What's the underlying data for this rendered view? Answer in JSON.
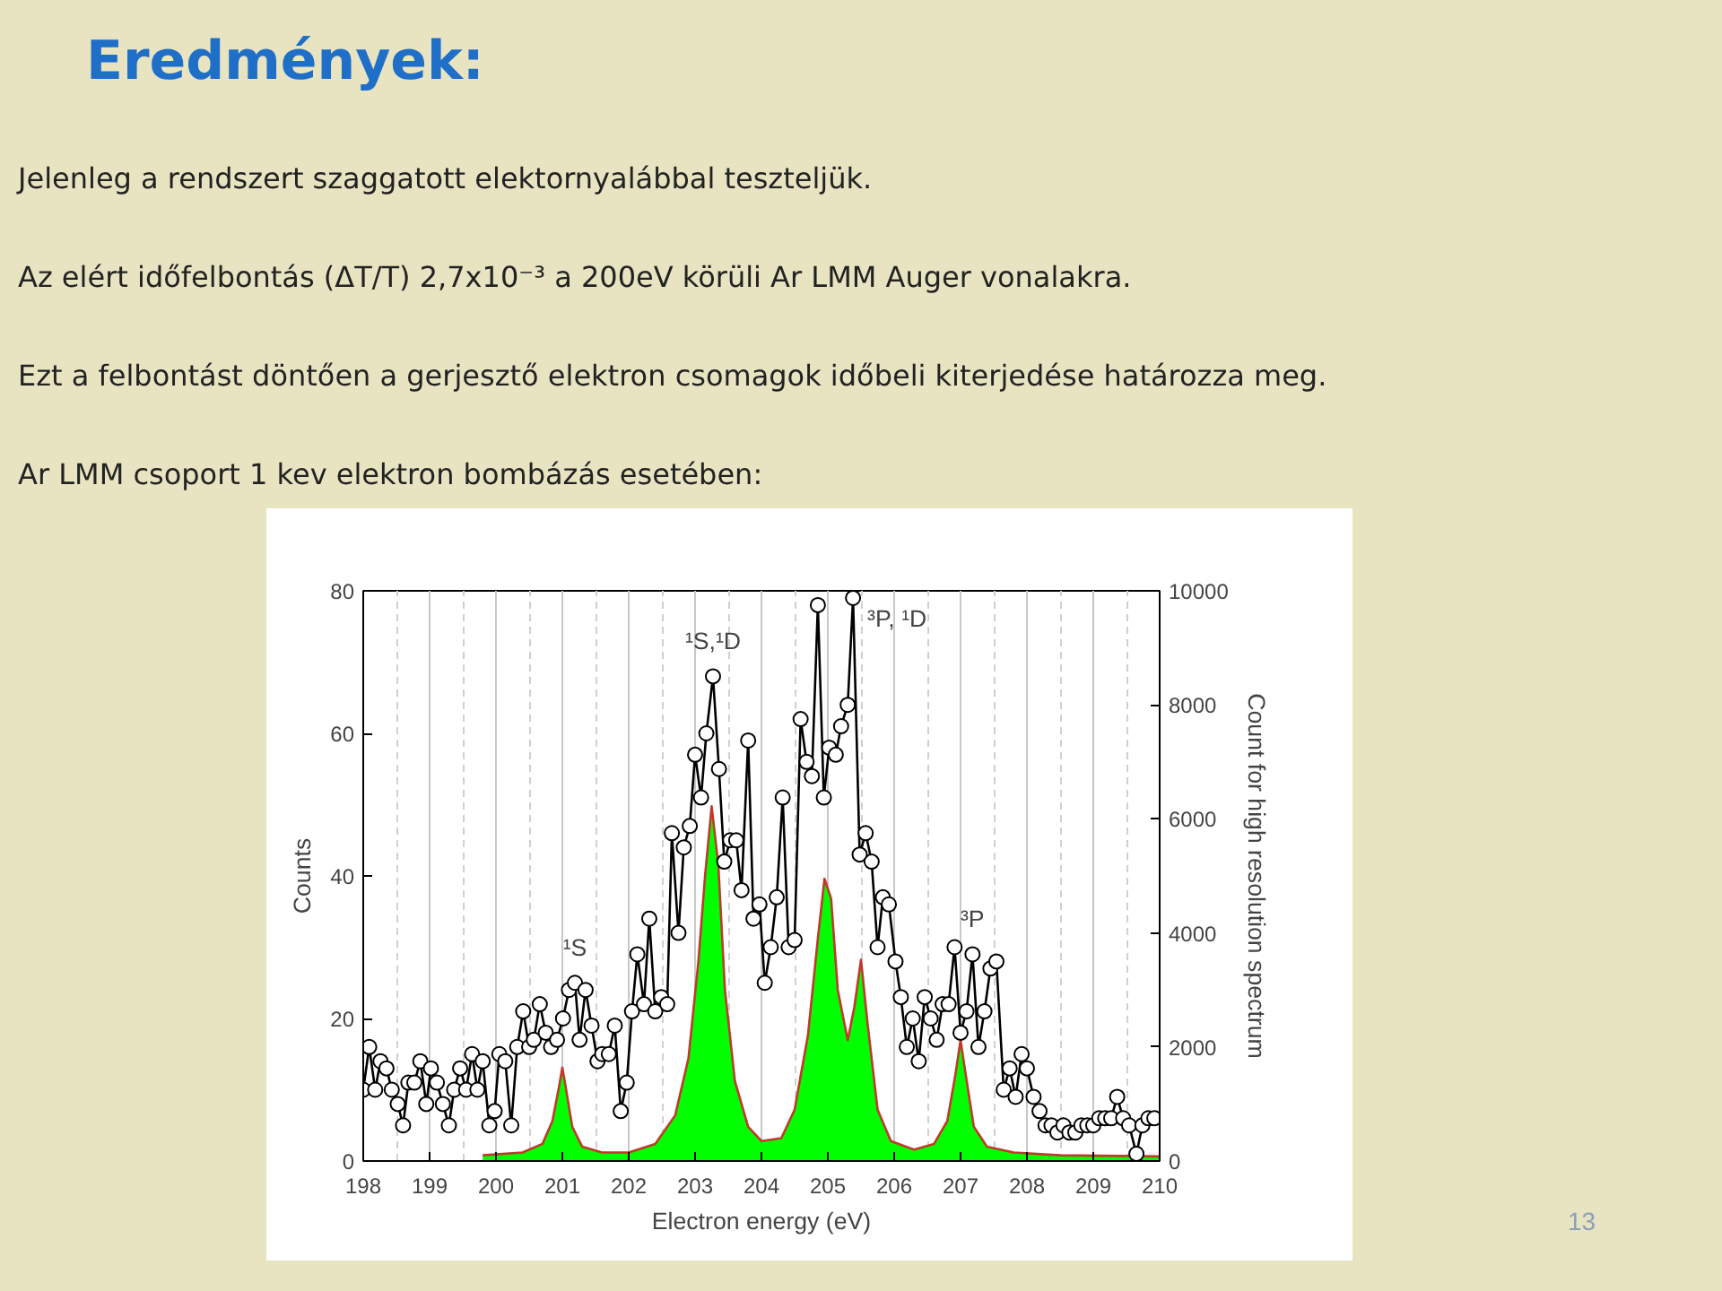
{
  "chart_data": {
    "type": "line",
    "title": "Eredmények:",
    "xlabel": "Electron energy (eV)",
    "ylabel": "Counts",
    "y2label": "Count for high resolution spectrum",
    "annotations": [
      "Jelenleg a rendszert szaggatott elektornyalábbal teszteljük.",
      "Az elért időfelbontás (ΔT/T) 2,7x10⁻³ a 200eV körüli Ar LMM Auger vonalakra.",
      "Ezt a felbontást döntően a gerjesztő elektron csomagok időbeli kiterjedése határozza meg.",
      "Ar LMM csoport  1 kev elektron bombázás esetében:",
      {
        "text": "¹S",
        "x": 201.19,
        "y": 25
      },
      {
        "text": "¹S,¹D",
        "x": 203.27,
        "y": 68
      },
      {
        "text": "³P, ¹D",
        "x": 205.38,
        "y": 79
      },
      {
        "text": "³P",
        "x": 207.18,
        "y": 29
      },
      "13"
    ],
    "xlim": [
      198,
      210
    ],
    "xticks": [
      198,
      199,
      200,
      201,
      202,
      203,
      204,
      205,
      206,
      207,
      208,
      209,
      210
    ],
    "ylim": [
      0,
      80
    ],
    "yticks": [
      0,
      20,
      40,
      60,
      80
    ],
    "y2lim": [
      0,
      10000
    ],
    "y2ticks": [
      0,
      2000,
      4000,
      6000,
      8000,
      10000
    ],
    "grid": "x",
    "series": [
      {
        "type": "area",
        "axis": "y2",
        "color": "#00ff00",
        "x": [
          199.8,
          200.4,
          200.7,
          200.85,
          200.95,
          201.0,
          201.05,
          201.15,
          201.3,
          201.6,
          202.0,
          202.4,
          202.7,
          202.9,
          203.05,
          203.15,
          203.25,
          203.35,
          203.45,
          203.6,
          203.8,
          204.0,
          204.3,
          204.5,
          204.7,
          204.85,
          204.95,
          205.05,
          205.15,
          205.3,
          205.4,
          205.5,
          205.6,
          205.75,
          205.95,
          206.3,
          206.6,
          206.8,
          206.92,
          207.0,
          207.08,
          207.2,
          207.4,
          207.8,
          208.5,
          210
        ],
        "values": [
          100,
          150,
          300,
          700,
          1300,
          1640,
          1300,
          600,
          250,
          150,
          150,
          300,
          800,
          1800,
          3500,
          5000,
          6220,
          5200,
          3000,
          1400,
          600,
          350,
          400,
          900,
          2200,
          3900,
          4950,
          4600,
          3000,
          2120,
          2700,
          3530,
          2400,
          900,
          350,
          200,
          300,
          700,
          1500,
          2120,
          1500,
          600,
          250,
          150,
          100,
          80
        ]
      },
      {
        "axis": "y2",
        "color": "#c0392b",
        "x": [
          199.8,
          200.4,
          200.7,
          200.85,
          200.95,
          201.0,
          201.05,
          201.15,
          201.3,
          201.6,
          202.0,
          202.4,
          202.7,
          202.9,
          203.05,
          203.15,
          203.25,
          203.35,
          203.45,
          203.6,
          203.8,
          204.0,
          204.3,
          204.5,
          204.7,
          204.85,
          204.95,
          205.05,
          205.15,
          205.3,
          205.4,
          205.5,
          205.6,
          205.75,
          205.95,
          206.3,
          206.6,
          206.8,
          206.92,
          207.0,
          207.08,
          207.2,
          207.4,
          207.8,
          208.5,
          210
        ],
        "values": [
          100,
          150,
          300,
          700,
          1300,
          1640,
          1300,
          600,
          250,
          150,
          150,
          300,
          800,
          1800,
          3500,
          5000,
          6220,
          5200,
          3000,
          1400,
          600,
          350,
          400,
          900,
          2200,
          3900,
          4950,
          4600,
          3000,
          2120,
          2700,
          3530,
          2400,
          900,
          350,
          200,
          300,
          700,
          1500,
          2120,
          1500,
          600,
          250,
          150,
          100,
          80
        ]
      },
      {
        "marker": "circle",
        "color": "#000000",
        "x": [
          198.0,
          198.09,
          198.18,
          198.26,
          198.35,
          198.43,
          198.52,
          198.6,
          198.68,
          198.77,
          198.86,
          198.95,
          199.02,
          199.11,
          199.2,
          199.29,
          199.37,
          199.46,
          199.55,
          199.64,
          199.72,
          199.8,
          199.9,
          199.98,
          200.05,
          200.14,
          200.23,
          200.32,
          200.41,
          200.5,
          200.57,
          200.66,
          200.75,
          200.83,
          200.92,
          201.01,
          201.1,
          201.19,
          201.26,
          201.35,
          201.44,
          201.53,
          201.6,
          201.7,
          201.79,
          201.88,
          201.97,
          202.05,
          202.13,
          202.23,
          202.31,
          202.4,
          202.49,
          202.58,
          202.65,
          202.75,
          202.83,
          202.92,
          203.0,
          203.09,
          203.17,
          203.27,
          203.36,
          203.44,
          203.53,
          203.62,
          203.7,
          203.8,
          203.88,
          203.97,
          204.05,
          204.14,
          204.23,
          204.32,
          204.41,
          204.5,
          204.59,
          204.68,
          204.76,
          204.85,
          204.94,
          205.02,
          205.12,
          205.2,
          205.3,
          205.38,
          205.48,
          205.57,
          205.66,
          205.75,
          205.83,
          205.92,
          206.02,
          206.1,
          206.19,
          206.28,
          206.37,
          206.46,
          206.55,
          206.64,
          206.73,
          206.82,
          206.91,
          207.0,
          207.09,
          207.18,
          207.27,
          207.36,
          207.45,
          207.54,
          207.65,
          207.74,
          207.83,
          207.92,
          208.0,
          208.1,
          208.19,
          208.28,
          208.37,
          208.46,
          208.55,
          208.64,
          208.73,
          208.82,
          208.91,
          209.0,
          209.09,
          209.18,
          209.27,
          209.36,
          209.45,
          209.54,
          209.65,
          209.74,
          209.83,
          209.92
        ],
        "values": [
          10,
          16,
          10,
          14,
          13,
          10,
          8,
          5,
          11,
          11,
          14,
          8,
          13,
          11,
          8,
          5,
          10,
          13,
          10,
          15,
          10,
          14,
          5,
          7,
          15,
          14,
          5,
          16,
          21,
          16,
          17,
          22,
          18,
          16,
          17,
          20,
          24,
          25,
          17,
          24,
          19,
          14,
          15,
          15,
          19,
          7,
          11,
          21,
          29,
          22,
          34,
          21,
          23,
          22,
          46,
          32,
          44,
          47,
          57,
          51,
          60,
          68,
          55,
          42,
          45,
          45,
          38,
          59,
          34,
          36,
          25,
          30,
          37,
          51,
          30,
          31,
          62,
          56,
          54,
          78,
          51,
          58,
          57,
          61,
          64,
          79,
          43,
          46,
          42,
          30,
          37,
          36,
          28,
          23,
          16,
          20,
          14,
          23,
          20,
          17,
          22,
          22,
          30,
          18,
          21,
          29,
          16,
          21,
          27,
          28,
          10,
          13,
          9,
          15,
          13,
          9,
          7,
          5,
          5,
          4,
          5,
          4,
          4,
          5,
          5,
          5,
          6,
          6,
          6,
          9,
          6,
          5,
          1,
          5,
          6,
          6
        ]
      }
    ]
  }
}
